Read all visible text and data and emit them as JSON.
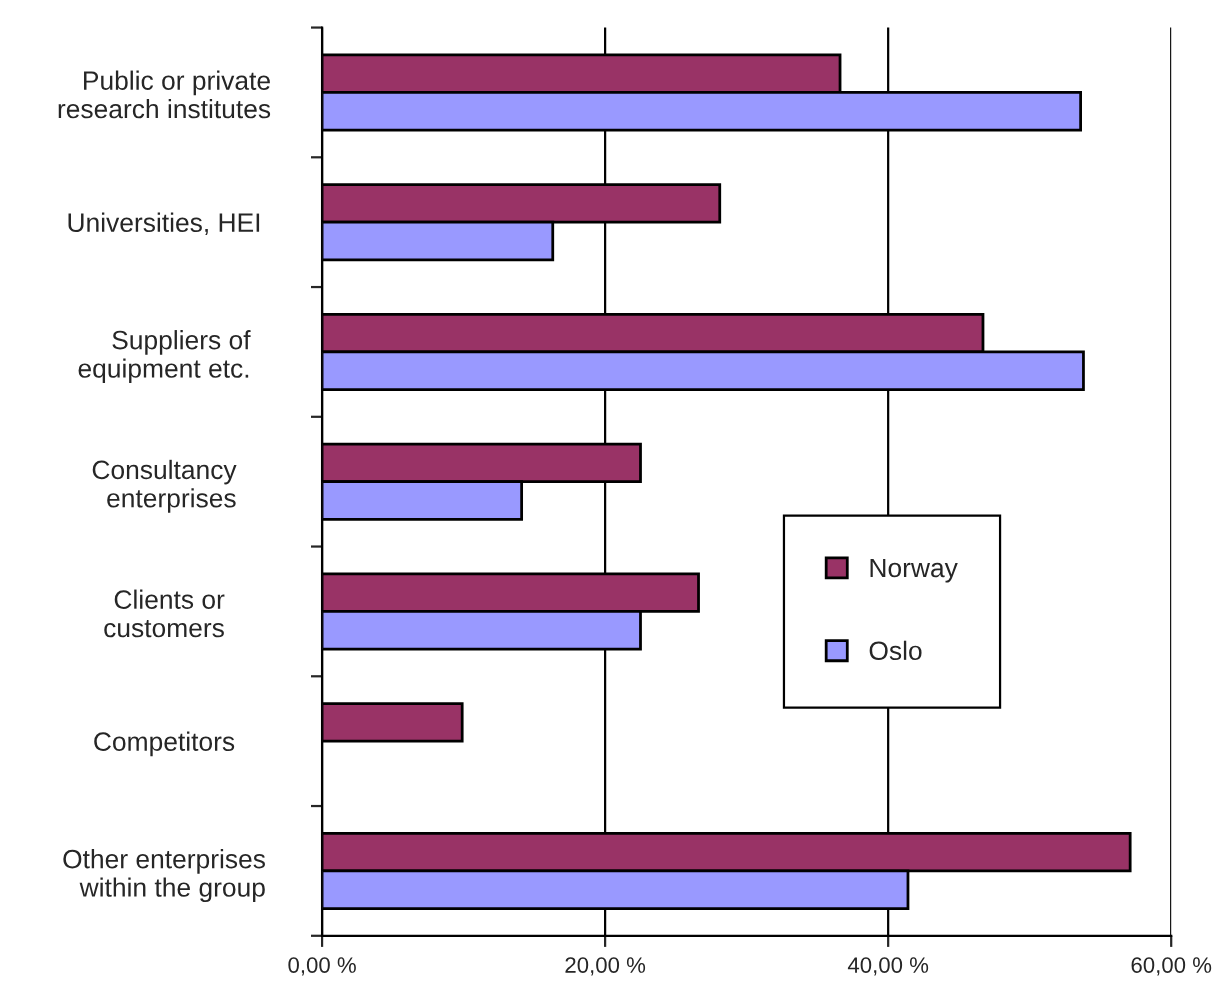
{
  "chart_data": {
    "type": "bar",
    "orientation": "horizontal",
    "categories": [
      "Public or private\nresearch institutes",
      "Universities, HEI",
      "Suppliers of\nequipment etc.",
      "Consultancy\nenterprises",
      "Clients or\ncustomers",
      "Competitors",
      "Other enterprises\nwithin the group"
    ],
    "series": [
      {
        "name": "Norway",
        "color": "#993366",
        "values": [
          36.6,
          28.1,
          46.7,
          22.5,
          26.6,
          9.9,
          57.1
        ]
      },
      {
        "name": "Oslo",
        "color": "#9999ff",
        "values": [
          53.6,
          16.3,
          53.8,
          14.1,
          22.5,
          null,
          41.4
        ]
      }
    ],
    "xlim": [
      0,
      60
    ],
    "xticks": [
      {
        "value": 0,
        "label": "0,00 %"
      },
      {
        "value": 20,
        "label": "20,00 %"
      },
      {
        "value": 40,
        "label": "40,00 %"
      },
      {
        "value": 60,
        "label": "60,00 %"
      }
    ],
    "grid": "x",
    "legend": "center right"
  }
}
